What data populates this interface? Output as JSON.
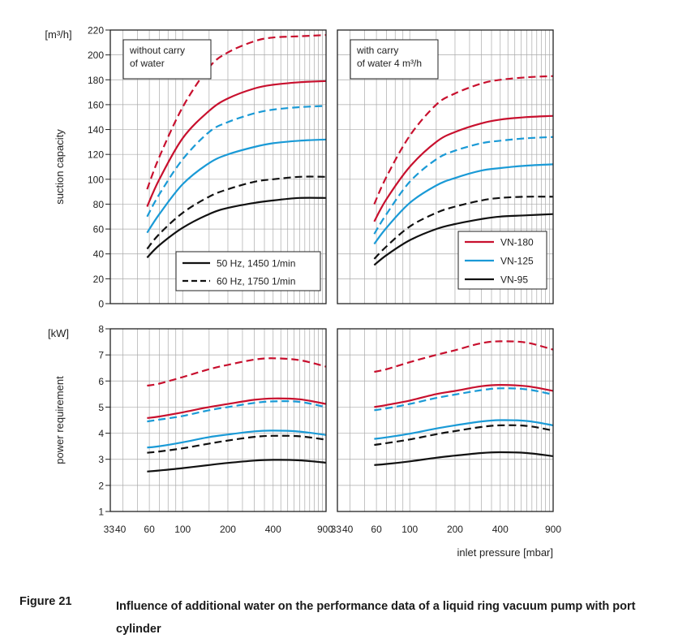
{
  "colors": {
    "VN-180": "#c8102e",
    "VN-125": "#1a9ad6",
    "VN-95": "#111111",
    "grid": "#aaaaaa",
    "frame": "#222222"
  },
  "chart_data": [
    {
      "id": "top-left",
      "type": "line",
      "xscale": "log",
      "xlim": [
        33,
        900
      ],
      "ylim": [
        0,
        220
      ],
      "yticks": [
        0,
        20,
        40,
        60,
        80,
        100,
        120,
        140,
        160,
        180,
        200,
        220
      ],
      "yunit": "[m³/h]",
      "ylabel": "suction capacity",
      "annotation": [
        "without carry",
        "of water"
      ],
      "series": [
        {
          "name": "VN-180",
          "freq": "60 Hz, 1750 1/min",
          "dashed": true,
          "x": [
            58,
            70,
            100,
            150,
            200,
            300,
            400,
            600,
            900
          ],
          "y": [
            92,
            118,
            158,
            190,
            202,
            211,
            214,
            215,
            216
          ]
        },
        {
          "name": "VN-180",
          "freq": "50 Hz, 1450 1/min",
          "dashed": false,
          "x": [
            58,
            70,
            100,
            150,
            200,
            300,
            400,
            600,
            900
          ],
          "y": [
            78,
            100,
            133,
            155,
            165,
            173,
            176,
            178,
            179
          ]
        },
        {
          "name": "VN-125",
          "freq": "60 Hz, 1750 1/min",
          "dashed": true,
          "x": [
            58,
            70,
            100,
            150,
            200,
            300,
            400,
            600,
            900
          ],
          "y": [
            70,
            88,
            116,
            138,
            146,
            153,
            156,
            158,
            159
          ]
        },
        {
          "name": "VN-125",
          "freq": "50 Hz, 1450 1/min",
          "dashed": false,
          "x": [
            58,
            70,
            100,
            150,
            200,
            300,
            400,
            600,
            900
          ],
          "y": [
            57,
            72,
            96,
            113,
            120,
            126,
            129,
            131,
            132
          ]
        },
        {
          "name": "VN-95",
          "freq": "60 Hz, 1750 1/min",
          "dashed": true,
          "x": [
            58,
            70,
            100,
            150,
            200,
            300,
            400,
            600,
            900
          ],
          "y": [
            44,
            56,
            73,
            86,
            92,
            98,
            100,
            102,
            102
          ]
        },
        {
          "name": "VN-95",
          "freq": "50 Hz, 1450 1/min",
          "dashed": false,
          "x": [
            58,
            70,
            100,
            150,
            200,
            300,
            400,
            600,
            900
          ],
          "y": [
            37,
            47,
            61,
            72,
            77,
            81,
            83,
            85,
            85
          ]
        }
      ]
    },
    {
      "id": "top-right",
      "type": "line",
      "xscale": "log",
      "xlim": [
        33,
        900
      ],
      "ylim": [
        0,
        220
      ],
      "annotation": [
        "with carry",
        "of water 4 m³/h"
      ],
      "series": [
        {
          "name": "VN-180",
          "freq": "60 Hz, 1750 1/min",
          "dashed": true,
          "x": [
            58,
            70,
            100,
            150,
            200,
            300,
            400,
            600,
            900
          ],
          "y": [
            80,
            102,
            135,
            160,
            169,
            177,
            180,
            182,
            183
          ]
        },
        {
          "name": "VN-180",
          "freq": "50 Hz, 1450 1/min",
          "dashed": false,
          "x": [
            58,
            70,
            100,
            150,
            200,
            300,
            400,
            600,
            900
          ],
          "y": [
            66,
            84,
            110,
            130,
            138,
            145,
            148,
            150,
            151
          ]
        },
        {
          "name": "VN-125",
          "freq": "60 Hz, 1750 1/min",
          "dashed": true,
          "x": [
            58,
            70,
            100,
            150,
            200,
            300,
            400,
            600,
            900
          ],
          "y": [
            56,
            72,
            98,
            116,
            123,
            129,
            131,
            133,
            134
          ]
        },
        {
          "name": "VN-125",
          "freq": "50 Hz, 1450 1/min",
          "dashed": false,
          "x": [
            58,
            70,
            100,
            150,
            200,
            300,
            400,
            600,
            900
          ],
          "y": [
            48,
            61,
            81,
            95,
            101,
            107,
            109,
            111,
            112
          ]
        },
        {
          "name": "VN-95",
          "freq": "60 Hz, 1750 1/min",
          "dashed": true,
          "x": [
            58,
            70,
            100,
            150,
            200,
            300,
            400,
            600,
            900
          ],
          "y": [
            36,
            46,
            62,
            73,
            78,
            83,
            85,
            86,
            86
          ]
        },
        {
          "name": "VN-95",
          "freq": "50 Hz, 1450 1/min",
          "dashed": false,
          "x": [
            58,
            70,
            100,
            150,
            200,
            300,
            400,
            600,
            900
          ],
          "y": [
            31,
            39,
            51,
            60,
            64,
            68,
            70,
            71,
            72
          ]
        }
      ]
    },
    {
      "id": "bottom-left",
      "type": "line",
      "xscale": "log",
      "xlim": [
        33,
        900
      ],
      "ylim": [
        1,
        8
      ],
      "yticks": [
        1,
        2,
        3,
        4,
        5,
        6,
        7,
        8
      ],
      "yunit": "[kW]",
      "ylabel": "power requirement",
      "xticks": [
        33,
        40,
        60,
        100,
        200,
        400,
        900
      ],
      "xticklabels": [
        "33",
        "40",
        "60",
        "100",
        "200",
        "400",
        "900"
      ],
      "series": [
        {
          "name": "VN-180",
          "freq": "60 Hz, 1750 1/min",
          "dashed": true,
          "x": [
            58,
            70,
            100,
            150,
            200,
            300,
            400,
            600,
            900
          ],
          "y": [
            5.82,
            5.9,
            6.15,
            6.45,
            6.62,
            6.82,
            6.87,
            6.8,
            6.55
          ]
        },
        {
          "name": "VN-180",
          "freq": "50 Hz, 1450 1/min",
          "dashed": false,
          "x": [
            58,
            70,
            100,
            150,
            200,
            300,
            400,
            600,
            900
          ],
          "y": [
            4.58,
            4.64,
            4.8,
            5.0,
            5.12,
            5.28,
            5.33,
            5.3,
            5.12
          ]
        },
        {
          "name": "VN-125",
          "freq": "60 Hz, 1750 1/min",
          "dashed": true,
          "x": [
            58,
            70,
            100,
            150,
            200,
            300,
            400,
            600,
            900
          ],
          "y": [
            4.45,
            4.52,
            4.66,
            4.88,
            5.0,
            5.16,
            5.22,
            5.2,
            5.0
          ]
        },
        {
          "name": "VN-125",
          "freq": "50 Hz, 1450 1/min",
          "dashed": false,
          "x": [
            58,
            70,
            100,
            150,
            200,
            300,
            400,
            600,
            900
          ],
          "y": [
            3.45,
            3.5,
            3.65,
            3.85,
            3.95,
            4.07,
            4.1,
            4.06,
            3.93
          ]
        },
        {
          "name": "VN-95",
          "freq": "60 Hz, 1750 1/min",
          "dashed": true,
          "x": [
            58,
            70,
            100,
            150,
            200,
            300,
            400,
            600,
            900
          ],
          "y": [
            3.25,
            3.3,
            3.42,
            3.6,
            3.72,
            3.86,
            3.9,
            3.88,
            3.75
          ]
        },
        {
          "name": "VN-95",
          "freq": "50 Hz, 1450 1/min",
          "dashed": false,
          "x": [
            58,
            70,
            100,
            150,
            200,
            300,
            400,
            600,
            900
          ],
          "y": [
            2.53,
            2.57,
            2.66,
            2.78,
            2.86,
            2.95,
            2.98,
            2.96,
            2.87
          ]
        }
      ]
    },
    {
      "id": "bottom-right",
      "type": "line",
      "xscale": "log",
      "xlim": [
        33,
        900
      ],
      "ylim": [
        1,
        8
      ],
      "xticks": [
        33,
        40,
        60,
        100,
        200,
        400,
        900
      ],
      "xticklabels": [
        "33",
        "40",
        "60",
        "100",
        "200",
        "400",
        "900"
      ],
      "xlabel": "inlet pressure [mbar]",
      "series": [
        {
          "name": "VN-180",
          "freq": "60 Hz, 1750 1/min",
          "dashed": true,
          "x": [
            58,
            70,
            100,
            150,
            200,
            300,
            400,
            600,
            900
          ],
          "y": [
            6.35,
            6.45,
            6.72,
            7.0,
            7.18,
            7.45,
            7.52,
            7.47,
            7.2
          ]
        },
        {
          "name": "VN-180",
          "freq": "50 Hz, 1450 1/min",
          "dashed": false,
          "x": [
            58,
            70,
            100,
            150,
            200,
            300,
            400,
            600,
            900
          ],
          "y": [
            5.0,
            5.08,
            5.25,
            5.5,
            5.62,
            5.8,
            5.85,
            5.8,
            5.62
          ]
        },
        {
          "name": "VN-125",
          "freq": "60 Hz, 1750 1/min",
          "dashed": true,
          "x": [
            58,
            70,
            100,
            150,
            200,
            300,
            400,
            600,
            900
          ],
          "y": [
            4.88,
            4.95,
            5.12,
            5.35,
            5.48,
            5.65,
            5.72,
            5.68,
            5.48
          ]
        },
        {
          "name": "VN-125",
          "freq": "50 Hz, 1450 1/min",
          "dashed": false,
          "x": [
            58,
            70,
            100,
            150,
            200,
            300,
            400,
            600,
            900
          ],
          "y": [
            3.78,
            3.84,
            3.98,
            4.18,
            4.3,
            4.45,
            4.5,
            4.47,
            4.3
          ]
        },
        {
          "name": "VN-95",
          "freq": "60 Hz, 1750 1/min",
          "dashed": true,
          "x": [
            58,
            70,
            100,
            150,
            200,
            300,
            400,
            600,
            900
          ],
          "y": [
            3.55,
            3.62,
            3.76,
            3.96,
            4.08,
            4.24,
            4.3,
            4.28,
            4.1
          ]
        },
        {
          "name": "VN-95",
          "freq": "50 Hz, 1450 1/min",
          "dashed": false,
          "x": [
            58,
            70,
            100,
            150,
            200,
            300,
            400,
            600,
            900
          ],
          "y": [
            2.78,
            2.82,
            2.92,
            3.06,
            3.14,
            3.24,
            3.27,
            3.24,
            3.12
          ]
        }
      ]
    }
  ],
  "legends": {
    "frequency": [
      {
        "label": "50 Hz, 1450 1/min",
        "dashed": false
      },
      {
        "label": "60 Hz, 1750 1/min",
        "dashed": true
      }
    ],
    "pumps": [
      {
        "label": "VN-180",
        "color": "#c8102e"
      },
      {
        "label": "VN-125",
        "color": "#1a9ad6"
      },
      {
        "label": "VN-95",
        "color": "#111111"
      }
    ]
  },
  "caption": {
    "label": "Figure 21",
    "text": "Influence of additional water on the performance data of a liquid ring vacuum pump with port cylinder"
  }
}
